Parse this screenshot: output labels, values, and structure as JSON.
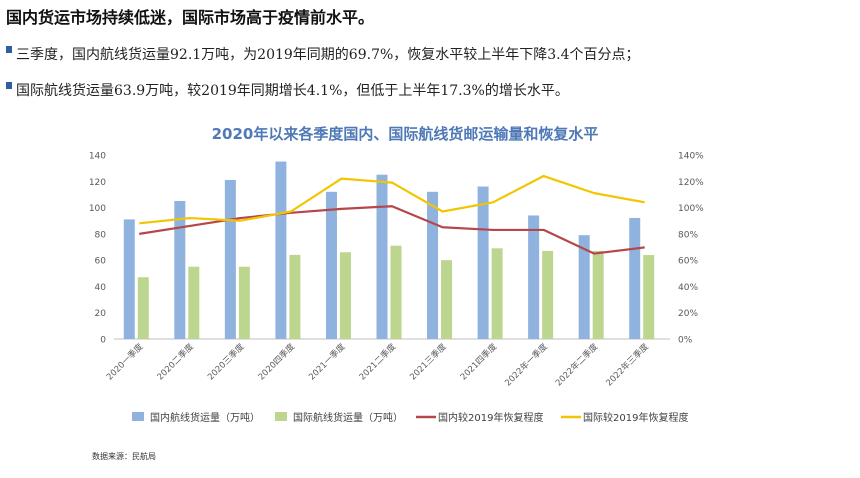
{
  "headline": "国内货运市场持续低迷，国际市场高于疫情前水平。",
  "bullets": [
    "三季度，国内航线货运量92.1万吨，为2019年同期的69.7%，恢复水平较上半年下降3.4个百分点；",
    "国际航线货运量63.9万吨，较2019年同期增长4.1%，但低于上半年17.3%的增长水平。"
  ],
  "source": "数据来源：民航局",
  "colors": {
    "domestic_bar": "#8fb2df",
    "intl_bar": "#bcd68f",
    "domestic_line": "#b5474b",
    "intl_line": "#f2c500",
    "title": "#4e79b6",
    "accent": "#2f5f9e"
  },
  "chart_data": {
    "type": "bar",
    "title": "2020年以来各季度国内、国际航线货邮运输量和恢复水平",
    "categories": [
      "2020一季度",
      "2020二季度",
      "2020三季度",
      "2020四季度",
      "2021一季度",
      "2021二季度",
      "2021三季度",
      "2021四季度",
      "2022年一季度",
      "2022年二季度",
      "2022年三季度"
    ],
    "y_left": {
      "min": 0,
      "max": 140,
      "ticks": [
        "0",
        "20",
        "40",
        "60",
        "80",
        "100",
        "120",
        "140"
      ]
    },
    "y_right": {
      "min": 0,
      "max": 1.4,
      "ticks": [
        "0%",
        "20%",
        "40%",
        "60%",
        "80%",
        "100%",
        "120%",
        "140%"
      ]
    },
    "grid": false,
    "legend_position": "bottom",
    "series": [
      {
        "name": "国内航线货运量（万吨）",
        "kind": "bar",
        "axis": "left",
        "values": [
          91,
          105,
          121,
          135,
          112,
          125,
          112,
          116,
          94,
          79,
          92.1
        ]
      },
      {
        "name": "国际航线货运量（万吨）",
        "kind": "bar",
        "axis": "left",
        "values": [
          47,
          55,
          55,
          64,
          66,
          71,
          60,
          69,
          67,
          67,
          63.9
        ]
      },
      {
        "name": "国内较2019年恢复程度",
        "kind": "line",
        "axis": "right",
        "values": [
          0.8,
          0.86,
          0.92,
          0.96,
          0.99,
          1.01,
          0.85,
          0.83,
          0.83,
          0.65,
          0.697
        ]
      },
      {
        "name": "国际较2019年恢复程度",
        "kind": "line",
        "axis": "right",
        "values": [
          0.88,
          0.92,
          0.9,
          0.97,
          1.22,
          1.19,
          0.97,
          1.04,
          1.24,
          1.11,
          1.04
        ]
      }
    ]
  }
}
